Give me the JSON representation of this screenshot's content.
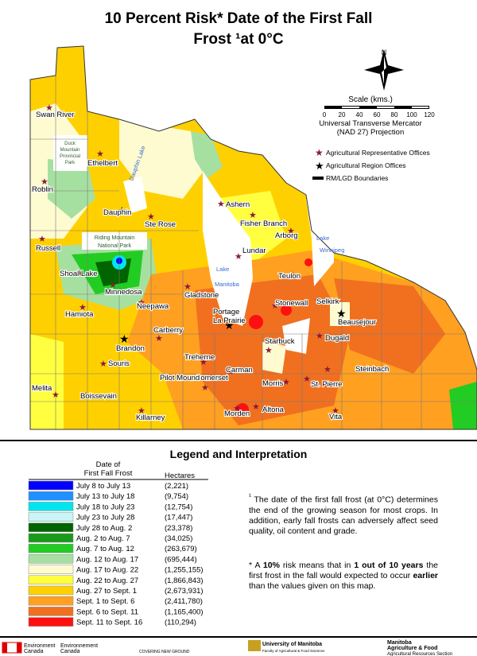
{
  "title_line1": "10 Percent Risk* Date of the First Fall",
  "title_line2": "Frost ¹at 0°C",
  "compass": "N",
  "scale": {
    "label": "Scale (kms.)",
    "ticks": [
      "0",
      "20",
      "40",
      "60",
      "80",
      "100",
      "120"
    ],
    "projection1": "Universal Transverse Mercator",
    "projection2": "(NAD 27) Projection"
  },
  "symbols": [
    "Agricultural Representative Offices",
    "Agricultural Region Offices",
    "RM/LGD Boundaries"
  ],
  "towns": [
    "Swan River",
    "Ethelbert",
    "Roblin",
    "Dauphin",
    "Ste Rose",
    "Ashern",
    "Fisher Branch",
    "Arborg",
    "Russell",
    "Lundar",
    "Shoal Lake",
    "Minnedosa",
    "Gladstone",
    "Teulon",
    "Neepawa",
    "Hamiota",
    "Stonewall",
    "Selkirk",
    "Portage",
    "La Prairie",
    "Beausejour",
    "Carberry",
    "Dugald",
    "Brandon",
    "Starbuck",
    "Treherne",
    "Souris",
    "Steinbach",
    "Carman",
    "Somerset",
    "Morris",
    "St. Pierre",
    "Melita",
    "Boissevain",
    "Pilot Mound",
    "Altona",
    "Killarney",
    "Morden",
    "Vita"
  ],
  "parks": [
    "Duck",
    "Mountain",
    "Provincial",
    "Park",
    "Riding Mountain",
    "National Park"
  ],
  "lakes": [
    "Dauphin Lake",
    "Lake",
    "Manitoba",
    "Lake",
    "Winnipeg"
  ],
  "legend": {
    "title": "Legend and Interpretation",
    "col1a": "Date of",
    "col1b": "First Fall Frost",
    "col2": "Hectares",
    "entries": [
      {
        "label": "July 8 to July 13",
        "hectares": "(2,221)",
        "color": "#0000ff"
      },
      {
        "label": "July 13 to July 18",
        "hectares": "(9,754)",
        "color": "#1e90ff"
      },
      {
        "label": "July 18 to July 23",
        "hectares": "(12,754)",
        "color": "#00e5ee"
      },
      {
        "label": "July 23 to July 28",
        "hectares": "(17,447)",
        "color": "#c8f5f5"
      },
      {
        "label": "July 28 to Aug. 2",
        "hectares": "(23,378)",
        "color": "#006400"
      },
      {
        "label": "Aug. 2 to Aug. 7",
        "hectares": "(34,025)",
        "color": "#1a9a1a"
      },
      {
        "label": "Aug. 7 to Aug. 12",
        "hectares": "(263,679)",
        "color": "#22cc22"
      },
      {
        "label": "Aug. 12 to Aug. 17",
        "hectares": "(695,444)",
        "color": "#a6e0a0"
      },
      {
        "label": "Aug. 17 to Aug. 22",
        "hectares": "(1,255,155)",
        "color": "#fffbd0"
      },
      {
        "label": "Aug. 22 to Aug. 27",
        "hectares": "(1,866,843)",
        "color": "#ffff40"
      },
      {
        "label": "Aug. 27 to Sept. 1",
        "hectares": "(2,673,931)",
        "color": "#ffd000"
      },
      {
        "label": "Sept. 1 to Sept. 6",
        "hectares": "(2,411,780)",
        "color": "#ffa020"
      },
      {
        "label": "Sept. 6 to Sept. 11",
        "hectares": "(1,165,400)",
        "color": "#f07020"
      },
      {
        "label": "Sept. 11 to Sept. 16",
        "hectares": "(110,294)",
        "color": "#ff1010"
      }
    ]
  },
  "note1": [
    "¹",
    "The date of the first fall frost (at 0°C) determines the end of the growing season for most crops. In addition, early fall frosts can adversely affect seed quality, oil content and grade."
  ],
  "note2": [
    "* A ",
    "10%",
    " risk means that in ",
    "1 out of 10 years",
    " the first frost in the fall would expected to occur ",
    "earlier",
    " than the values given on this map."
  ],
  "footer": [
    "Environment",
    "Canada",
    "Environnement",
    "Canada",
    "COVERING NEW GROUND",
    "University of Manitoba",
    "Faculty of Agricultural & Food Sciences",
    "Manitoba",
    "Agriculture & Food",
    "Agricultural Resources Section"
  ]
}
